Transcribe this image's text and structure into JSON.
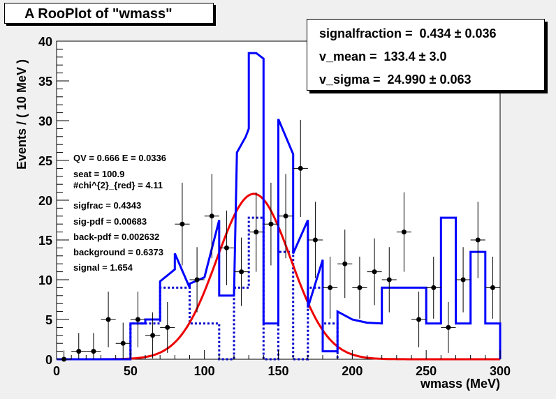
{
  "title": "A RooPlot of \"wmass\"",
  "params": [
    {
      "name": "signalfraction",
      "value": "0.434",
      "error": "0.036"
    },
    {
      "name": "v_mean",
      "value": "133.4",
      "error": "3.0"
    },
    {
      "name": "v_sigma",
      "value": "24.990",
      "error": "0.063"
    }
  ],
  "param_text": [
    "signalfraction =  0.434 ± 0.036",
    "v_mean =  133.4 ± 3.0",
    "v_sigma =  24.990 ± 0.063"
  ],
  "stats": [
    "QV = 0.666 E = 0.0336",
    "seat = 100.9",
    "#chi^{2}_{red} = 4.11",
    "sigfrac = 0.4343",
    "sig-pdf = 0.00683",
    "back-pdf = 0.002632",
    "background = 0.6373",
    "signal = 1.654"
  ],
  "colors": {
    "total": "#0000ff",
    "signal": "#ee0000",
    "background": "#0000cc",
    "data": "#000000"
  },
  "chart_data": {
    "type": "scatter",
    "xlabel": "wmass (MeV)",
    "ylabel": "Events / ( 10 MeV )",
    "xlim": [
      0,
      300
    ],
    "ylim": [
      0,
      40
    ],
    "x_ticks": [
      0,
      50,
      100,
      150,
      200,
      250,
      300
    ],
    "y_ticks": [
      0,
      5,
      10,
      15,
      20,
      25,
      30,
      35,
      40
    ],
    "data_points": [
      {
        "x": 5,
        "y": 0,
        "yerr": 1.1
      },
      {
        "x": 15,
        "y": 1,
        "yerr": 2.3
      },
      {
        "x": 25,
        "y": 1,
        "yerr": 2.3
      },
      {
        "x": 35,
        "y": 5,
        "yerr": 3.5
      },
      {
        "x": 45,
        "y": 2,
        "yerr": 2.6
      },
      {
        "x": 55,
        "y": 5,
        "yerr": 3.5
      },
      {
        "x": 65,
        "y": 3,
        "yerr": 2.9
      },
      {
        "x": 75,
        "y": 4,
        "yerr": 3.2
      },
      {
        "x": 85,
        "y": 17,
        "yerr": 5.2
      },
      {
        "x": 95,
        "y": 10,
        "yerr": 4.1
      },
      {
        "x": 105,
        "y": 18,
        "yerr": 5.3
      },
      {
        "x": 115,
        "y": 14,
        "yerr": 4.7
      },
      {
        "x": 125,
        "y": 11,
        "yerr": 4.3
      },
      {
        "x": 135,
        "y": 16,
        "yerr": 5.0
      },
      {
        "x": 145,
        "y": 17,
        "yerr": 5.2
      },
      {
        "x": 155,
        "y": 18,
        "yerr": 5.3
      },
      {
        "x": 165,
        "y": 24,
        "yerr": 6.1
      },
      {
        "x": 175,
        "y": 15,
        "yerr": 4.8
      },
      {
        "x": 185,
        "y": 9,
        "yerr": 3.9
      },
      {
        "x": 195,
        "y": 12,
        "yerr": 4.3
      },
      {
        "x": 205,
        "y": 9,
        "yerr": 3.9
      },
      {
        "x": 215,
        "y": 11,
        "yerr": 4.2
      },
      {
        "x": 225,
        "y": 10,
        "yerr": 4.1
      },
      {
        "x": 235,
        "y": 16,
        "yerr": 5.0
      },
      {
        "x": 245,
        "y": 5,
        "yerr": 3.5
      },
      {
        "x": 255,
        "y": 9,
        "yerr": 3.9
      },
      {
        "x": 265,
        "y": 4,
        "yerr": 3.2
      },
      {
        "x": 275,
        "y": 10,
        "yerr": 4.1
      },
      {
        "x": 285,
        "y": 15,
        "yerr": 4.8
      },
      {
        "x": 295,
        "y": 9,
        "yerr": 3.9
      }
    ],
    "series": [
      {
        "role": "total-pdf",
        "x": [
          0,
          50,
          50,
          60,
          60,
          70,
          70,
          80,
          80,
          90,
          90,
          100,
          110,
          110,
          120,
          122,
          128,
          130,
          130,
          135,
          140,
          140,
          150,
          150,
          160,
          160,
          170,
          170,
          180,
          180,
          190,
          190,
          200,
          210,
          220,
          220,
          250,
          250,
          260,
          260,
          270,
          270,
          280,
          280,
          290,
          290,
          300,
          300
        ],
        "y": [
          0,
          0,
          4.5,
          4.5,
          5.0,
          5.0,
          9.8,
          11.3,
          13.3,
          9.0,
          9.5,
          10.3,
          17.5,
          8.0,
          8.0,
          26.0,
          28.0,
          29.0,
          38.5,
          38.5,
          37.8,
          4.5,
          4.5,
          30.2,
          25.8,
          13.3,
          17.5,
          6.5,
          12.5,
          1.0,
          1.0,
          6.0,
          5.0,
          4.6,
          4.5,
          9.0,
          9.0,
          4.5,
          4.5,
          17.8,
          17.8,
          4.5,
          4.5,
          13.5,
          13.5,
          4.5,
          4.5,
          0
        ]
      },
      {
        "role": "background-pdf",
        "x": [
          50,
          50,
          70,
          70,
          90,
          90,
          110,
          110,
          120,
          120,
          130,
          130,
          140,
          140,
          150,
          150,
          160,
          160,
          170,
          170,
          180,
          180,
          190,
          190
        ],
        "y": [
          0,
          4.5,
          4.5,
          9.0,
          9.0,
          4.5,
          4.5,
          0,
          0,
          9.0,
          9.0,
          17.8,
          17.8,
          0,
          0,
          13.5,
          13.5,
          0,
          0,
          9.0,
          9.0,
          4.5,
          4.5,
          0
        ]
      },
      {
        "role": "signal-pdf",
        "mean": 133.4,
        "sigma": 24.99,
        "peak": 20.8,
        "x_range": [
          0,
          300
        ]
      }
    ]
  }
}
